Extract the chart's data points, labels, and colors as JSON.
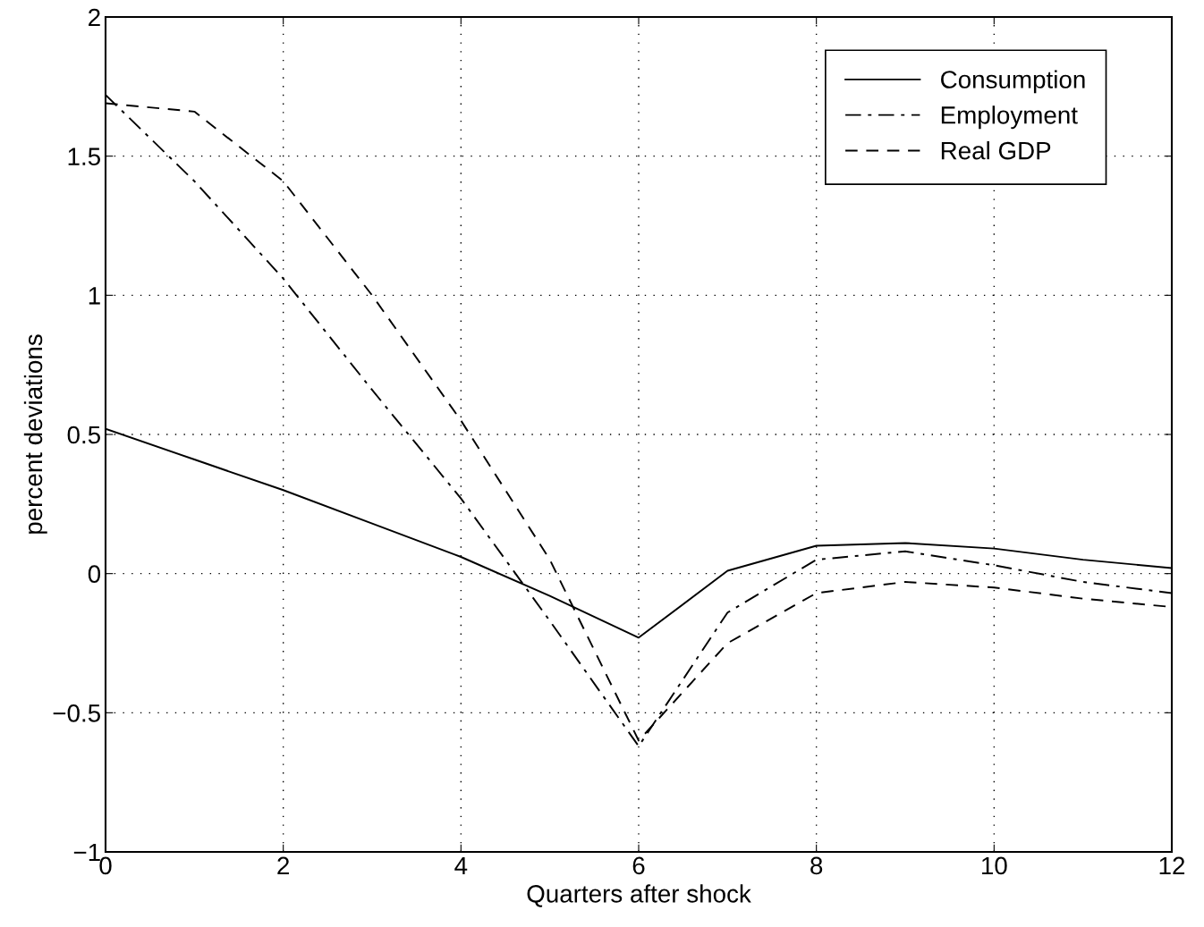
{
  "chart_data": {
    "type": "line",
    "xlabel": "Quarters after shock",
    "ylabel": "percent deviations",
    "x": [
      0,
      1,
      2,
      3,
      4,
      5,
      6,
      7,
      8,
      9,
      10,
      11,
      12
    ],
    "series": [
      {
        "name": "Consumption",
        "color": "#000000",
        "line_style": "solid",
        "values": [
          0.52,
          0.41,
          0.3,
          0.18,
          0.06,
          -0.08,
          -0.23,
          0.01,
          0.1,
          0.11,
          0.09,
          0.05,
          0.02
        ]
      },
      {
        "name": "Employment",
        "color": "#000000",
        "line_style": "dashdot",
        "values": [
          1.72,
          1.41,
          1.06,
          0.66,
          0.27,
          -0.17,
          -0.62,
          -0.14,
          0.05,
          0.08,
          0.03,
          -0.03,
          -0.07
        ]
      },
      {
        "name": "Real GDP",
        "color": "#000000",
        "line_style": "dashed",
        "values": [
          1.69,
          1.66,
          1.41,
          1.0,
          0.55,
          0.05,
          -0.6,
          -0.25,
          -0.07,
          -0.03,
          -0.05,
          -0.09,
          -0.12
        ]
      }
    ],
    "xlim": [
      0,
      12
    ],
    "xticks": [
      0,
      2,
      4,
      6,
      8,
      10,
      12
    ],
    "ylim": [
      -1,
      2
    ],
    "yticks": [
      -1,
      -0.5,
      0,
      0.5,
      1,
      1.5,
      2
    ],
    "grid": true,
    "legend": "top right"
  }
}
